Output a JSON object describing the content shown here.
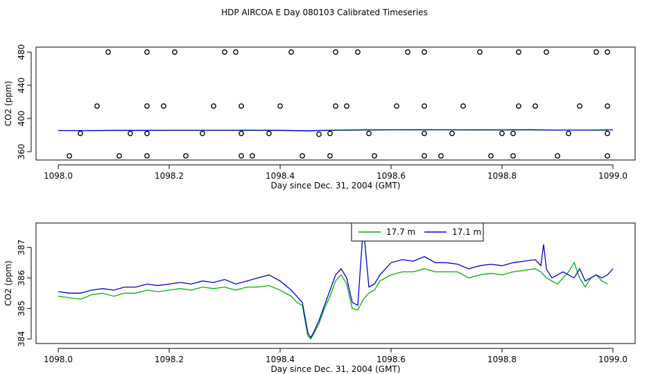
{
  "figure": {
    "title": "HDP AIRCOA E  Day 080103  Calibrated Timeseries"
  },
  "chart_data": [
    {
      "type": "scatter",
      "panel": "top",
      "title": "HDP AIRCOA E  Day 080103  Calibrated Timeseries",
      "xlabel": "Day since Dec. 31, 2004 (GMT)",
      "ylabel": "CO2 (ppm)",
      "xlim": [
        1097.96,
        1099.04
      ],
      "ylim": [
        350,
        486
      ],
      "xticks": [
        1098.0,
        1098.2,
        1098.4,
        1098.6,
        1098.8,
        1099.0
      ],
      "xtick_labels": [
        "1098.0",
        "1098.2",
        "1098.4",
        "1098.6",
        "1098.8",
        "1099.0"
      ],
      "yticks": [
        360,
        400,
        440,
        480
      ],
      "ytick_labels": [
        "360",
        "400",
        "440",
        "480"
      ],
      "grid": false,
      "series": [
        {
          "color": "#00a000",
          "style": "line",
          "x": [
            1098.0,
            1098.05,
            1098.1,
            1098.15,
            1098.2,
            1098.25,
            1098.3,
            1098.35,
            1098.4,
            1098.45,
            1098.5,
            1098.55,
            1098.6,
            1098.65,
            1098.7,
            1098.75,
            1098.8,
            1098.85,
            1098.9,
            1098.95,
            1098.99
          ],
          "y": [
            385.4,
            385.4,
            385.5,
            385.5,
            385.6,
            385.6,
            385.6,
            385.6,
            385.5,
            385.0,
            385.7,
            386.0,
            386.2,
            386.2,
            386.2,
            386.1,
            386.1,
            386.2,
            386.0,
            386.0,
            385.8
          ]
        },
        {
          "color": "#0000d0",
          "style": "line",
          "x": [
            1098.0,
            1098.05,
            1098.1,
            1098.15,
            1098.2,
            1098.25,
            1098.3,
            1098.35,
            1098.4,
            1098.45,
            1098.5,
            1098.55,
            1098.6,
            1098.65,
            1098.7,
            1098.75,
            1098.8,
            1098.85,
            1098.9,
            1098.95,
            1099.0
          ],
          "y": [
            385.5,
            385.5,
            385.6,
            385.6,
            385.8,
            385.8,
            385.8,
            385.9,
            385.7,
            385.2,
            386.0,
            386.3,
            386.4,
            386.5,
            386.4,
            386.4,
            386.3,
            386.5,
            386.0,
            386.0,
            386.3
          ]
        },
        {
          "style": "points",
          "marker": "open-circle",
          "color": "#000000",
          "x": [
            1098.09,
            1098.16,
            1098.21,
            1098.3,
            1098.32,
            1098.42,
            1098.5,
            1098.54,
            1098.63,
            1098.66,
            1098.76,
            1098.83,
            1098.88,
            1098.97,
            1098.99,
            1098.07,
            1098.16,
            1098.19,
            1098.28,
            1098.33,
            1098.4,
            1098.5,
            1098.52,
            1098.61,
            1098.66,
            1098.73,
            1098.83,
            1098.86,
            1098.94,
            1098.99,
            1098.04,
            1098.13,
            1098.16,
            1098.26,
            1098.33,
            1098.38,
            1098.47,
            1098.49,
            1098.56,
            1098.66,
            1098.71,
            1098.8,
            1098.82,
            1098.92,
            1098.99,
            1098.02,
            1098.11,
            1098.16,
            1098.23,
            1098.33,
            1098.35,
            1098.44,
            1098.49,
            1098.57,
            1098.66,
            1098.69,
            1098.78,
            1098.82,
            1098.9,
            1098.99
          ],
          "y": [
            480,
            480,
            480,
            480,
            480,
            480,
            480,
            480,
            480,
            480,
            480,
            480,
            480,
            480,
            480,
            415,
            415,
            415,
            415,
            415,
            415,
            415,
            415,
            415,
            415,
            415,
            415,
            415,
            415,
            415,
            382,
            382,
            382,
            382,
            382,
            382,
            381,
            382,
            382,
            382,
            382,
            382,
            382,
            382,
            382,
            355,
            355,
            355,
            355,
            355,
            355,
            355,
            355,
            355,
            355,
            355,
            355,
            355,
            355,
            355
          ]
        }
      ]
    },
    {
      "type": "line",
      "panel": "bottom",
      "xlabel": "Day since Dec. 31, 2004 (GMT)",
      "ylabel": "CO2 (ppm)",
      "xlim": [
        1097.96,
        1099.04
      ],
      "ylim": [
        383.85,
        387.8
      ],
      "xticks": [
        1098.0,
        1098.2,
        1098.4,
        1098.6,
        1098.8,
        1099.0
      ],
      "xtick_labels": [
        "1098.0",
        "1098.2",
        "1098.4",
        "1098.6",
        "1098.8",
        "1099.0"
      ],
      "yticks": [
        384,
        385,
        386,
        387
      ],
      "ytick_labels": [
        "384",
        "385",
        "386",
        "387"
      ],
      "grid": false,
      "legend": "top-center",
      "series": [
        {
          "name": "17.7 m",
          "color": "#00b000",
          "x": [
            1098.0,
            1098.02,
            1098.04,
            1098.06,
            1098.08,
            1098.1,
            1098.12,
            1098.14,
            1098.16,
            1098.18,
            1098.2,
            1098.22,
            1098.24,
            1098.26,
            1098.28,
            1098.3,
            1098.32,
            1098.34,
            1098.36,
            1098.38,
            1098.4,
            1098.42,
            1098.43,
            1098.44,
            1098.45,
            1098.455,
            1098.46,
            1098.47,
            1098.48,
            1098.49,
            1098.5,
            1098.51,
            1098.52,
            1098.53,
            1098.54,
            1098.55,
            1098.56,
            1098.57,
            1098.58,
            1098.59,
            1098.6,
            1098.62,
            1098.64,
            1098.66,
            1098.68,
            1098.7,
            1098.72,
            1098.74,
            1098.76,
            1098.78,
            1098.8,
            1098.82,
            1098.84,
            1098.86,
            1098.87,
            1098.88,
            1098.89,
            1098.9,
            1098.91,
            1098.92,
            1098.93,
            1098.94,
            1098.95,
            1098.96,
            1098.97,
            1098.98,
            1098.99
          ],
          "y": [
            385.4,
            385.35,
            385.3,
            385.45,
            385.5,
            385.4,
            385.5,
            385.5,
            385.6,
            385.55,
            385.6,
            385.65,
            385.6,
            385.7,
            385.65,
            385.7,
            385.6,
            385.7,
            385.7,
            385.75,
            385.6,
            385.4,
            385.2,
            385.1,
            384.1,
            384.0,
            384.15,
            384.5,
            385.0,
            385.4,
            385.9,
            386.1,
            385.8,
            385.0,
            384.95,
            385.3,
            385.5,
            385.6,
            385.9,
            386.0,
            386.1,
            386.2,
            386.2,
            386.3,
            386.2,
            386.2,
            386.2,
            386.0,
            386.1,
            386.15,
            386.1,
            386.2,
            386.25,
            386.3,
            386.2,
            386.0,
            385.9,
            385.8,
            386.0,
            386.2,
            386.5,
            386.0,
            385.7,
            386.0,
            386.1,
            385.9,
            385.8
          ]
        },
        {
          "name": "17.1 m",
          "color": "#0000d0",
          "x": [
            1098.0,
            1098.02,
            1098.04,
            1098.06,
            1098.08,
            1098.1,
            1098.12,
            1098.14,
            1098.16,
            1098.18,
            1098.2,
            1098.22,
            1098.24,
            1098.26,
            1098.28,
            1098.3,
            1098.32,
            1098.34,
            1098.36,
            1098.38,
            1098.4,
            1098.42,
            1098.43,
            1098.44,
            1098.45,
            1098.455,
            1098.46,
            1098.47,
            1098.48,
            1098.49,
            1098.5,
            1098.51,
            1098.52,
            1098.53,
            1098.54,
            1098.55,
            1098.56,
            1098.57,
            1098.58,
            1098.59,
            1098.6,
            1098.62,
            1098.64,
            1098.66,
            1098.68,
            1098.7,
            1098.72,
            1098.74,
            1098.76,
            1098.78,
            1098.8,
            1098.82,
            1098.84,
            1098.86,
            1098.87,
            1098.875,
            1098.88,
            1098.89,
            1098.9,
            1098.91,
            1098.92,
            1098.93,
            1098.94,
            1098.95,
            1098.96,
            1098.97,
            1098.98,
            1098.99,
            1099.0
          ],
          "y": [
            385.55,
            385.5,
            385.5,
            385.6,
            385.65,
            385.6,
            385.7,
            385.7,
            385.8,
            385.75,
            385.8,
            385.85,
            385.8,
            385.9,
            385.85,
            385.95,
            385.8,
            385.9,
            386.0,
            386.1,
            385.9,
            385.6,
            385.4,
            385.2,
            384.2,
            384.05,
            384.2,
            384.6,
            385.1,
            385.6,
            386.1,
            386.3,
            386.0,
            385.2,
            385.1,
            387.7,
            385.7,
            385.8,
            386.1,
            386.3,
            386.5,
            386.6,
            386.55,
            386.7,
            386.5,
            386.5,
            386.45,
            386.3,
            386.4,
            386.45,
            386.4,
            386.5,
            386.55,
            386.6,
            386.4,
            387.1,
            386.3,
            386.0,
            386.1,
            386.2,
            386.1,
            386.0,
            386.3,
            385.9,
            386.0,
            386.1,
            386.0,
            386.1,
            386.3
          ]
        }
      ]
    }
  ]
}
